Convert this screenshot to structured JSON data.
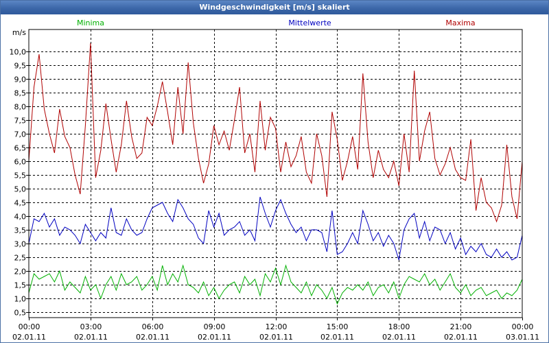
{
  "window": {
    "title": "Windgeschwindigkeit [m/s] skaliert"
  },
  "chart_data": {
    "type": "line",
    "title": "Windgeschwindigkeit [m/s] skaliert",
    "ylabel": "m/s",
    "ylim": [
      0.3,
      10.8
    ],
    "yticks": [
      0.5,
      1.0,
      1.5,
      2.0,
      2.5,
      3.0,
      3.5,
      4.0,
      4.5,
      5.0,
      5.5,
      6.0,
      6.5,
      7.0,
      7.5,
      8.0,
      8.5,
      9.0,
      9.5,
      10.0
    ],
    "ytick_labels": [
      "0,5",
      "1,0",
      "1,5",
      "2,0",
      "2,5",
      "3,0",
      "3,5",
      "4,0",
      "4,5",
      "5,0",
      "5,5",
      "6,0",
      "6,5",
      "7,0",
      "7,5",
      "8,0",
      "8,5",
      "9,0",
      "9,5",
      "10,0"
    ],
    "x_range_hours": [
      0,
      24
    ],
    "xticks": [
      {
        "time": "00:00",
        "date": "02.01.11"
      },
      {
        "time": "03:00",
        "date": "02.01.11"
      },
      {
        "time": "06:00",
        "date": "02.01.11"
      },
      {
        "time": "09:00",
        "date": "02.01.11"
      },
      {
        "time": "12:00",
        "date": "02.01.11"
      },
      {
        "time": "15:00",
        "date": "02.01.11"
      },
      {
        "time": "18:00",
        "date": "02.01.11"
      },
      {
        "time": "21:00",
        "date": "02.01.11"
      },
      {
        "time": "00:00",
        "date": "03.01.11"
      }
    ],
    "grid": true,
    "colors": {
      "Minima": "#00b000",
      "Mittelwerte": "#0000c0",
      "Maxima": "#b00000"
    },
    "series": [
      {
        "name": "Maxima",
        "color": "#b00000",
        "x": [
          0,
          0.25,
          0.5,
          0.75,
          1,
          1.25,
          1.5,
          1.75,
          2,
          2.25,
          2.5,
          2.75,
          3,
          3.25,
          3.5,
          3.75,
          4,
          4.25,
          4.5,
          4.75,
          5,
          5.25,
          5.5,
          5.75,
          6,
          6.25,
          6.5,
          6.75,
          7,
          7.25,
          7.5,
          7.75,
          8,
          8.25,
          8.5,
          8.75,
          9,
          9.25,
          9.5,
          9.75,
          10,
          10.25,
          10.5,
          10.75,
          11,
          11.25,
          11.5,
          11.75,
          12,
          12.25,
          12.5,
          12.75,
          13,
          13.25,
          13.5,
          13.75,
          14,
          14.25,
          14.5,
          14.75,
          15,
          15.25,
          15.5,
          15.75,
          16,
          16.25,
          16.5,
          16.75,
          17,
          17.25,
          17.5,
          17.75,
          18,
          18.25,
          18.5,
          18.75,
          19,
          19.25,
          19.5,
          19.75,
          20,
          20.25,
          20.5,
          20.75,
          21,
          21.25,
          21.5,
          21.75,
          22,
          22.25,
          22.5,
          22.75,
          23,
          23.25,
          23.5,
          23.75,
          24
        ],
        "values": [
          6.0,
          8.7,
          9.9,
          7.9,
          7.0,
          6.3,
          7.9,
          6.9,
          6.5,
          5.5,
          4.8,
          7.3,
          10.3,
          5.4,
          6.4,
          8.1,
          6.8,
          5.6,
          6.6,
          8.2,
          6.9,
          6.1,
          6.3,
          7.6,
          7.3,
          8.0,
          8.9,
          7.8,
          6.6,
          8.7,
          7.0,
          9.6,
          7.4,
          6.1,
          5.2,
          5.9,
          7.3,
          6.6,
          7.1,
          6.4,
          7.5,
          8.7,
          6.3,
          7.0,
          5.6,
          8.2,
          6.4,
          7.6,
          7.2,
          5.6,
          6.7,
          5.8,
          6.2,
          6.9,
          5.6,
          5.2,
          7.0,
          6.2,
          4.7,
          7.8,
          6.8,
          5.3,
          6.0,
          6.9,
          5.7,
          9.2,
          6.7,
          5.4,
          6.4,
          5.7,
          5.4,
          6.0,
          5.1,
          7.0,
          5.6,
          9.3,
          6.0,
          7.1,
          7.8,
          6.1,
          5.5,
          5.9,
          6.5,
          5.7,
          5.4,
          5.3,
          6.8,
          4.2,
          5.4,
          4.5,
          4.3,
          3.8,
          4.4,
          6.6,
          4.7,
          3.9,
          6.0
        ]
      },
      {
        "name": "Mittelwerte",
        "color": "#0000c0",
        "x": [
          0,
          0.25,
          0.5,
          0.75,
          1,
          1.25,
          1.5,
          1.75,
          2,
          2.25,
          2.5,
          2.75,
          3,
          3.25,
          3.5,
          3.75,
          4,
          4.25,
          4.5,
          4.75,
          5,
          5.25,
          5.5,
          5.75,
          6,
          6.25,
          6.5,
          6.75,
          7,
          7.25,
          7.5,
          7.75,
          8,
          8.25,
          8.5,
          8.75,
          9,
          9.25,
          9.5,
          9.75,
          10,
          10.25,
          10.5,
          10.75,
          11,
          11.25,
          11.5,
          11.75,
          12,
          12.25,
          12.5,
          12.75,
          13,
          13.25,
          13.5,
          13.75,
          14,
          14.25,
          14.5,
          14.75,
          15,
          15.25,
          15.5,
          15.75,
          16,
          16.25,
          16.5,
          16.75,
          17,
          17.25,
          17.5,
          17.75,
          18,
          18.25,
          18.5,
          18.75,
          19,
          19.25,
          19.5,
          19.75,
          20,
          20.25,
          20.5,
          20.75,
          21,
          21.25,
          21.5,
          21.75,
          22,
          22.25,
          22.5,
          22.75,
          23,
          23.25,
          23.5,
          23.75,
          24
        ],
        "values": [
          3.0,
          3.9,
          3.8,
          4.1,
          3.6,
          3.9,
          3.3,
          3.6,
          3.5,
          3.3,
          3.0,
          3.7,
          3.4,
          3.1,
          3.4,
          3.2,
          4.3,
          3.4,
          3.3,
          3.9,
          3.5,
          3.3,
          3.4,
          3.9,
          4.3,
          4.4,
          4.5,
          4.1,
          3.8,
          4.6,
          4.3,
          3.9,
          3.7,
          3.2,
          3.0,
          4.2,
          3.6,
          4.1,
          3.3,
          3.5,
          3.6,
          3.8,
          3.3,
          3.5,
          3.1,
          4.7,
          4.1,
          3.6,
          4.2,
          4.6,
          4.1,
          3.7,
          3.4,
          3.6,
          3.1,
          3.5,
          3.5,
          3.4,
          2.7,
          4.2,
          2.6,
          2.7,
          3.0,
          3.4,
          3.0,
          4.2,
          3.7,
          3.1,
          3.4,
          2.9,
          3.3,
          3.0,
          2.4,
          3.5,
          3.9,
          4.1,
          3.2,
          3.8,
          3.1,
          3.6,
          3.5,
          3.0,
          3.4,
          2.8,
          3.2,
          2.6,
          2.9,
          2.7,
          3.0,
          2.6,
          2.5,
          2.8,
          2.5,
          2.7,
          2.4,
          2.5,
          3.3
        ]
      },
      {
        "name": "Minima",
        "color": "#00b000",
        "x": [
          0,
          0.25,
          0.5,
          0.75,
          1,
          1.25,
          1.5,
          1.75,
          2,
          2.25,
          2.5,
          2.75,
          3,
          3.25,
          3.5,
          3.75,
          4,
          4.25,
          4.5,
          4.75,
          5,
          5.25,
          5.5,
          5.75,
          6,
          6.25,
          6.5,
          6.75,
          7,
          7.25,
          7.5,
          7.75,
          8,
          8.25,
          8.5,
          8.75,
          9,
          9.25,
          9.5,
          9.75,
          10,
          10.25,
          10.5,
          10.75,
          11,
          11.25,
          11.5,
          11.75,
          12,
          12.25,
          12.5,
          12.75,
          13,
          13.25,
          13.5,
          13.75,
          14,
          14.25,
          14.5,
          14.75,
          15,
          15.25,
          15.5,
          15.75,
          16,
          16.25,
          16.5,
          16.75,
          17,
          17.25,
          17.5,
          17.75,
          18,
          18.25,
          18.5,
          18.75,
          19,
          19.25,
          19.5,
          19.75,
          20,
          20.25,
          20.5,
          20.75,
          21,
          21.25,
          21.5,
          21.75,
          22,
          22.25,
          22.5,
          22.75,
          23,
          23.25,
          23.5,
          23.75,
          24
        ],
        "values": [
          1.2,
          1.9,
          1.7,
          1.8,
          1.9,
          1.6,
          2.0,
          1.3,
          1.6,
          1.4,
          1.2,
          1.8,
          1.3,
          1.5,
          1.0,
          1.5,
          1.8,
          1.3,
          1.9,
          1.5,
          1.6,
          1.8,
          1.3,
          1.5,
          1.8,
          1.3,
          2.2,
          1.5,
          1.9,
          1.6,
          2.2,
          1.5,
          1.4,
          1.2,
          1.6,
          1.1,
          1.4,
          1.0,
          1.3,
          1.5,
          1.6,
          1.2,
          1.8,
          1.5,
          1.7,
          1.1,
          1.9,
          1.6,
          2.1,
          1.5,
          2.2,
          1.6,
          1.4,
          1.2,
          1.6,
          1.1,
          1.5,
          1.3,
          1.0,
          1.4,
          0.8,
          1.2,
          1.4,
          1.3,
          1.5,
          1.3,
          1.6,
          1.1,
          1.4,
          1.5,
          1.2,
          1.6,
          1.0,
          1.5,
          1.8,
          1.7,
          1.6,
          1.9,
          1.5,
          1.7,
          1.3,
          1.6,
          1.9,
          1.4,
          1.2,
          1.5,
          1.1,
          1.3,
          1.4,
          1.1,
          1.2,
          1.3,
          1.0,
          1.2,
          1.1,
          1.3,
          1.7
        ]
      }
    ]
  }
}
